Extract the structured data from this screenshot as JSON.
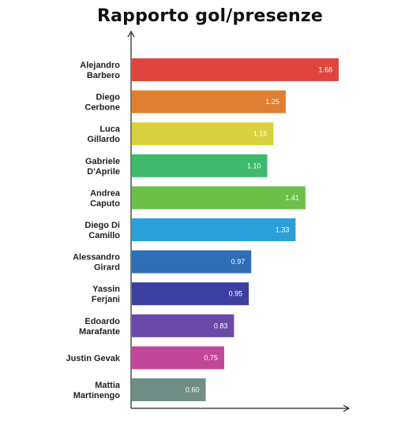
{
  "chart_data": {
    "type": "bar",
    "orientation": "horizontal",
    "title": "Rapporto gol/presenze",
    "xlabel": "",
    "ylabel": "",
    "xlim": [
      0,
      1.8
    ],
    "grid": false,
    "legend": "none",
    "categories": [
      [
        "Alejandro",
        "Barbero"
      ],
      [
        "Diego",
        "Cerbone"
      ],
      [
        "Luca",
        "Gillardo"
      ],
      [
        "Gabriele",
        "D'Aprile"
      ],
      [
        "Andrea",
        "Caputo"
      ],
      [
        "Diego Di",
        "Camillo"
      ],
      [
        "Alessandro",
        "Girard"
      ],
      [
        "Yassin",
        "Ferjani"
      ],
      [
        "Edoardo",
        "Marafante"
      ],
      [
        "Justin Gevak"
      ],
      [
        "Mattia",
        "Martinengo"
      ]
    ],
    "values": [
      1.68,
      1.25,
      1.15,
      1.1,
      1.41,
      1.33,
      0.97,
      0.95,
      0.83,
      0.75,
      0.6
    ],
    "value_labels": [
      "1.68",
      "1.25",
      "1.15",
      "1.10",
      "1.41",
      "1.33",
      "0.97",
      "0.95",
      "0.83",
      "0.75",
      "0.60"
    ],
    "colors": [
      "#e0463f",
      "#e07f32",
      "#d8d03e",
      "#3dba6c",
      "#6cc04a",
      "#2b9fd9",
      "#2f6db5",
      "#3d3fa0",
      "#6a4aa8",
      "#c2479a",
      "#6f8f86"
    ]
  }
}
